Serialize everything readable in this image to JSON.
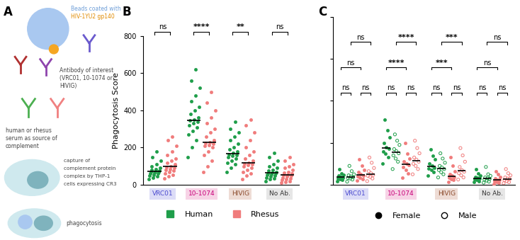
{
  "diagram": {
    "panel": "A",
    "bead_label": [
      "Beads coated with",
      "HIV-1YU2 gp140"
    ],
    "antibody_label": [
      "Antibody of interest",
      "(VRC01, 10-1074 or",
      "HIVIG)"
    ],
    "serum_label": [
      "human or rhesus",
      "serum as source of",
      "complement"
    ],
    "capture_label": [
      "capture of",
      "complement protein",
      "complex by THP-1",
      "cells expressing CR3"
    ],
    "final_label": "phagocytosis"
  },
  "chart_data": [
    {
      "type": "scatter",
      "panel": "B",
      "y_label": "Phagocytosis Score",
      "categories": [
        "VRC01",
        "10-1074",
        "HIVIG",
        "No Ab."
      ],
      "ylim": [
        0,
        800
      ],
      "yticks": [
        0,
        200,
        400,
        600,
        800
      ],
      "legend": "upper center",
      "series": [
        {
          "name": "Human",
          "color": "#1f9e4a",
          "marker": "filled_circle",
          "values": [
            [
              30,
              40,
              45,
              50,
              55,
              60,
              62,
              65,
              68,
              70,
              72,
              75,
              80,
              85,
              90,
              100,
              110,
              130,
              150,
              180
            ],
            [
              150,
              200,
              240,
              270,
              290,
              310,
              320,
              330,
              340,
              345,
              350,
              360,
              380,
              400,
              420,
              450,
              480,
              520,
              560,
              620
            ],
            [
              70,
              90,
              110,
              120,
              130,
              140,
              150,
              155,
              160,
              165,
              170,
              180,
              190,
              200,
              220,
              240,
              260,
              280,
              300,
              340
            ],
            [
              20,
              30,
              35,
              40,
              45,
              50,
              55,
              58,
              60,
              62,
              65,
              70,
              75,
              80,
              90,
              100,
              110,
              130,
              150,
              170
            ]
          ]
        },
        {
          "name": "Rhesus",
          "color": "#f07c7c",
          "marker": "filled_circle",
          "values": [
            [
              35,
              45,
              55,
              60,
              70,
              75,
              80,
              85,
              90,
              95,
              100,
              110,
              120,
              130,
              140,
              160,
              180,
              210,
              240,
              260
            ],
            [
              70,
              100,
              130,
              160,
              180,
              200,
              210,
              215,
              220,
              225,
              230,
              240,
              260,
              280,
              300,
              330,
              360,
              400,
              440,
              500
            ],
            [
              30,
              50,
              60,
              70,
              80,
              90,
              100,
              105,
              110,
              115,
              120,
              130,
              140,
              160,
              180,
              200,
              240,
              280,
              320,
              350
            ],
            [
              10,
              15,
              20,
              25,
              30,
              35,
              40,
              45,
              50,
              52,
              55,
              60,
              65,
              70,
              80,
              90,
              100,
              110,
              130,
              150
            ]
          ]
        }
      ],
      "comparisons": [
        {
          "category": 0,
          "series": [
            0,
            1
          ],
          "label": "ns"
        },
        {
          "category": 1,
          "series": [
            0,
            1
          ],
          "label": "****"
        },
        {
          "category": 2,
          "series": [
            0,
            1
          ],
          "label": "**"
        },
        {
          "category": 3,
          "series": [
            0,
            1
          ],
          "label": "ns"
        }
      ]
    },
    {
      "type": "scatter",
      "panel": "C",
      "categories": [
        "VRC01",
        "10-1074",
        "HIVIG",
        "No Ab."
      ],
      "ylim": [
        0,
        1600
      ],
      "yticks": [
        0,
        400,
        800,
        1200,
        1600
      ],
      "tick_labels": "x",
      "legend": "upper center",
      "series": [
        {
          "name": "Female",
          "color": "#1f9e4a",
          "marker": "filled_circle",
          "values": [
            [
              35,
              45,
              55,
              60,
              70,
              75,
              85,
              95,
              110,
              150
            ],
            [
              200,
              260,
              300,
              320,
              345,
              360,
              400,
              450,
              520,
              620
            ],
            [
              90,
              120,
              140,
              155,
              165,
              180,
              200,
              240,
              280,
              340
            ],
            [
              25,
              35,
              45,
              55,
              60,
              65,
              75,
              90,
              110,
              150
            ]
          ]
        },
        {
          "name": "Male",
          "color": "#1f9e4a",
          "marker": "open_circle",
          "values": [
            [
              30,
              50,
              60,
              65,
              72,
              80,
              90,
              100,
              130,
              180
            ],
            [
              150,
              220,
              250,
              280,
              300,
              320,
              340,
              380,
              420,
              480
            ],
            [
              70,
              100,
              120,
              140,
              150,
              165,
              180,
              210,
              250,
              300
            ],
            [
              20,
              30,
              40,
              50,
              58,
              62,
              70,
              85,
              100,
              170
            ]
          ]
        },
        {
          "name": "Female",
          "color": "#f07c7c",
          "marker": "filled_circle",
          "values": [
            [
              40,
              55,
              70,
              80,
              90,
              100,
              120,
              140,
              180,
              240
            ],
            [
              70,
              110,
              140,
              170,
              190,
              200,
              220,
              250,
              300,
              400
            ],
            [
              30,
              45,
              55,
              65,
              75,
              85,
              100,
              130,
              180,
              260
            ],
            [
              10,
              20,
              25,
              35,
              45,
              50,
              60,
              75,
              100,
              130
            ]
          ]
        },
        {
          "name": "Male",
          "color": "#f07c7c",
          "marker": "open_circle",
          "values": [
            [
              35,
              60,
              75,
              85,
              95,
              110,
              130,
              160,
              210,
              260
            ],
            [
              100,
              150,
              180,
              200,
              220,
              240,
              260,
              300,
              350,
              420
            ],
            [
              50,
              70,
              90,
              110,
              125,
              140,
              170,
              220,
              280,
              350
            ],
            [
              15,
              25,
              35,
              45,
              55,
              60,
              70,
              90,
              110,
              150
            ]
          ]
        }
      ],
      "comparisons": [
        {
          "category": 0,
          "series": [
            0,
            1
          ],
          "label": "ns"
        },
        {
          "category": 0,
          "series": [
            2,
            3
          ],
          "label": "ns"
        },
        {
          "category": 0,
          "series": [
            0,
            2
          ],
          "label": "ns"
        },
        {
          "category": 0,
          "series": [
            1,
            3
          ],
          "label": "ns"
        },
        {
          "category": 1,
          "series": [
            0,
            1
          ],
          "label": "ns"
        },
        {
          "category": 1,
          "series": [
            2,
            3
          ],
          "label": "ns"
        },
        {
          "category": 1,
          "series": [
            0,
            2
          ],
          "label": "****"
        },
        {
          "category": 1,
          "series": [
            1,
            3
          ],
          "label": "****"
        },
        {
          "category": 2,
          "series": [
            0,
            1
          ],
          "label": "ns"
        },
        {
          "category": 2,
          "series": [
            2,
            3
          ],
          "label": "ns"
        },
        {
          "category": 2,
          "series": [
            0,
            2
          ],
          "label": "***"
        },
        {
          "category": 2,
          "series": [
            1,
            3
          ],
          "label": "***"
        },
        {
          "category": 3,
          "series": [
            0,
            1
          ],
          "label": "ns"
        },
        {
          "category": 3,
          "series": [
            2,
            3
          ],
          "label": "ns"
        },
        {
          "category": 3,
          "series": [
            0,
            2
          ],
          "label": "ns"
        },
        {
          "category": 3,
          "series": [
            1,
            3
          ],
          "label": "ns"
        }
      ]
    }
  ]
}
